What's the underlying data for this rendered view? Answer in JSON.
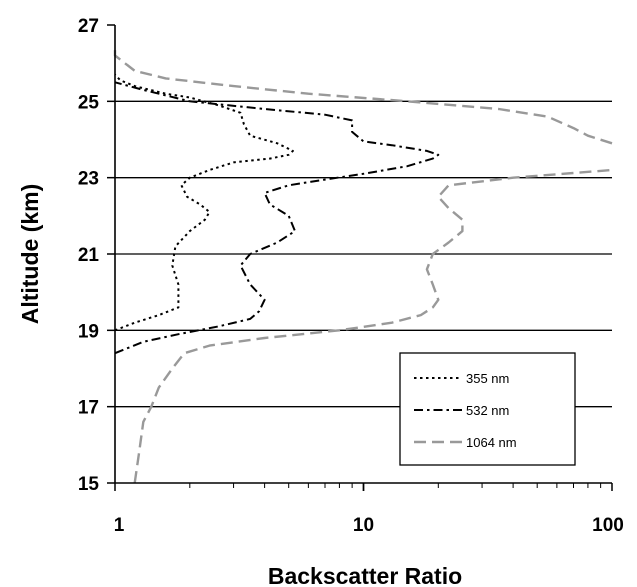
{
  "chart_data": {
    "type": "line",
    "xlabel": "Backscatter Ratio",
    "ylabel": "Altitude (km)",
    "x_scale": "log",
    "xlim": [
      1,
      100
    ],
    "ylim": [
      15,
      27
    ],
    "x_ticks": [
      1,
      10,
      100
    ],
    "x_tick_labels": [
      "1",
      "10",
      "100"
    ],
    "y_ticks": [
      15,
      17,
      19,
      21,
      23,
      25,
      27
    ],
    "y_tick_labels": [
      "15",
      "17",
      "19",
      "21",
      "23",
      "25",
      "27"
    ],
    "horizontal_gridlines": [
      17,
      19,
      21,
      23,
      25
    ],
    "legend_position": "bottom-right",
    "series": [
      {
        "name": "355 nm",
        "style": "dotted",
        "color": "#000000",
        "points": [
          [
            1.0,
            19.0
          ],
          [
            1.2,
            19.2
          ],
          [
            1.5,
            19.4
          ],
          [
            1.8,
            19.6
          ],
          [
            1.8,
            20.2
          ],
          [
            1.7,
            20.7
          ],
          [
            1.75,
            21.2
          ],
          [
            2.0,
            21.6
          ],
          [
            2.3,
            21.9
          ],
          [
            2.4,
            22.1
          ],
          [
            2.2,
            22.3
          ],
          [
            1.95,
            22.5
          ],
          [
            1.85,
            22.8
          ],
          [
            2.0,
            23.0
          ],
          [
            2.4,
            23.2
          ],
          [
            3.0,
            23.4
          ],
          [
            4.2,
            23.5
          ],
          [
            5.0,
            23.6
          ],
          [
            5.2,
            23.7
          ],
          [
            4.5,
            23.9
          ],
          [
            3.5,
            24.1
          ],
          [
            3.3,
            24.4
          ],
          [
            3.2,
            24.7
          ],
          [
            2.6,
            24.9
          ],
          [
            2.0,
            25.1
          ],
          [
            1.6,
            25.2
          ],
          [
            1.2,
            25.4
          ],
          [
            1.05,
            25.55
          ],
          [
            1.0,
            25.7
          ]
        ]
      },
      {
        "name": "532 nm",
        "style": "dash-dot",
        "color": "#000000",
        "points": [
          [
            1.0,
            18.4
          ],
          [
            1.3,
            18.7
          ],
          [
            1.8,
            18.9
          ],
          [
            2.6,
            19.1
          ],
          [
            3.5,
            19.3
          ],
          [
            3.8,
            19.5
          ],
          [
            4.0,
            19.8
          ],
          [
            3.5,
            20.2
          ],
          [
            3.2,
            20.7
          ],
          [
            3.5,
            21.0
          ],
          [
            4.5,
            21.3
          ],
          [
            5.3,
            21.6
          ],
          [
            5.0,
            22.0
          ],
          [
            4.2,
            22.3
          ],
          [
            4.0,
            22.6
          ],
          [
            5.0,
            22.8
          ],
          [
            7.0,
            22.95
          ],
          [
            10.0,
            23.1
          ],
          [
            15.0,
            23.3
          ],
          [
            19.0,
            23.5
          ],
          [
            20.0,
            23.6
          ],
          [
            18.0,
            23.7
          ],
          [
            13.0,
            23.85
          ],
          [
            10.0,
            23.95
          ],
          [
            9.0,
            24.2
          ],
          [
            9.0,
            24.5
          ],
          [
            7.0,
            24.65
          ],
          [
            4.0,
            24.8
          ],
          [
            2.0,
            25.0
          ],
          [
            1.3,
            25.3
          ],
          [
            1.0,
            25.5
          ]
        ]
      },
      {
        "name": "1064 nm",
        "style": "dashed",
        "color": "#999999",
        "points": [
          [
            1.2,
            15.0
          ],
          [
            1.25,
            15.8
          ],
          [
            1.3,
            16.6
          ],
          [
            1.4,
            17.0
          ],
          [
            1.5,
            17.5
          ],
          [
            1.7,
            18.0
          ],
          [
            1.9,
            18.4
          ],
          [
            2.4,
            18.6
          ],
          [
            4.0,
            18.8
          ],
          [
            8.0,
            19.0
          ],
          [
            13.0,
            19.2
          ],
          [
            17.0,
            19.4
          ],
          [
            19.0,
            19.6
          ],
          [
            20.0,
            19.8
          ],
          [
            19.0,
            20.2
          ],
          [
            18.0,
            20.6
          ],
          [
            19.0,
            21.0
          ],
          [
            22.0,
            21.3
          ],
          [
            25.0,
            21.6
          ],
          [
            25.0,
            21.9
          ],
          [
            22.0,
            22.2
          ],
          [
            20.0,
            22.5
          ],
          [
            22.0,
            22.8
          ],
          [
            40.0,
            23.0
          ],
          [
            100.0,
            23.2
          ]
        ]
      },
      {
        "name": "",
        "style": "dashed",
        "color": "#999999",
        "points": [
          [
            100.0,
            23.9
          ],
          [
            80.0,
            24.1
          ],
          [
            70.0,
            24.3
          ],
          [
            55.0,
            24.6
          ],
          [
            35.0,
            24.8
          ],
          [
            15.0,
            25.0
          ],
          [
            6.0,
            25.2
          ],
          [
            3.0,
            25.4
          ],
          [
            1.6,
            25.6
          ],
          [
            1.2,
            25.8
          ],
          [
            1.0,
            26.2
          ],
          [
            1.0,
            26.5
          ]
        ]
      }
    ]
  }
}
